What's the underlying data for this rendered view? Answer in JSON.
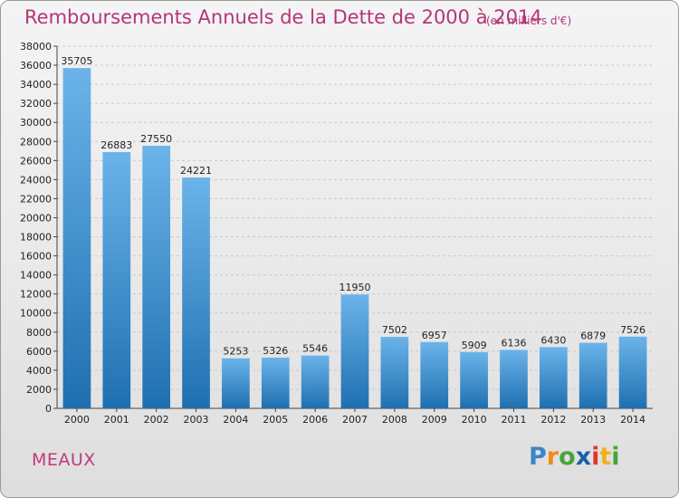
{
  "title": "Remboursements Annuels de la Dette de 2000 à 2014",
  "subtitle": "(en milliers d'€)",
  "city": "MEAUX",
  "brand": {
    "letters": [
      "P",
      "r",
      "o",
      "x",
      "i",
      "t",
      "i"
    ],
    "colors": [
      "#3a86c8",
      "#f08a1c",
      "#4aa33a",
      "#1a5fa8",
      "#e0372b",
      "#f0b21c",
      "#4aa33a"
    ]
  },
  "colors": {
    "bar_top": "#6bb4ea",
    "bar_bottom": "#1f6fb0",
    "title": "#b5357a",
    "grid": "#c9c9c9"
  },
  "chart_data": {
    "type": "bar",
    "title": "Remboursements Annuels de la Dette de 2000 à 2014",
    "subtitle": "(en milliers d'€)",
    "categories": [
      "2000",
      "2001",
      "2002",
      "2003",
      "2004",
      "2005",
      "2006",
      "2007",
      "2008",
      "2009",
      "2010",
      "2011",
      "2012",
      "2013",
      "2014"
    ],
    "values": [
      35705,
      26883,
      27550,
      24221,
      5253,
      5326,
      5546,
      11950,
      7502,
      6957,
      5909,
      6136,
      6430,
      6879,
      7526
    ],
    "ylim": [
      0,
      38000
    ],
    "ytick_step": 2000,
    "grid": true
  }
}
